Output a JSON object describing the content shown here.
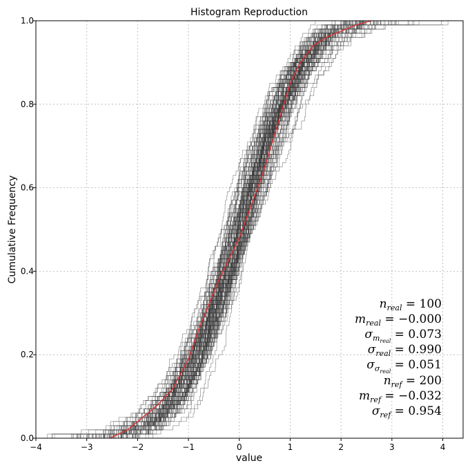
{
  "chart_data": {
    "type": "line",
    "title": "Histogram Reproduction",
    "xlabel": "value",
    "ylabel": "Cumulative Frequency",
    "xlim": [
      -4,
      4.4
    ],
    "ylim": [
      0,
      1
    ],
    "xticks": [
      -4,
      -3,
      -2,
      -1,
      0,
      1,
      2,
      3,
      4
    ],
    "xtick_labels": [
      "−4",
      "−3",
      "−2",
      "−1",
      "0",
      "1",
      "2",
      "3",
      "4"
    ],
    "yticks": [
      0.0,
      0.2,
      0.4,
      0.6,
      0.8,
      1.0
    ],
    "ytick_labels": [
      "0.0",
      "0.2",
      "0.4",
      "0.6",
      "0.8",
      "1.0"
    ],
    "grid": true,
    "series": [
      {
        "description": "simulated realization CDFs",
        "color": "#333333",
        "count": 100,
        "points": 100,
        "mean": -0.0,
        "std": 0.99,
        "std_of_mean": 0.073,
        "std_of_std": 0.051
      },
      {
        "description": "reference CDF",
        "color": "#e03030",
        "x": [
          -2.55,
          -2.2,
          -1.9,
          -1.6,
          -1.3,
          -1.0,
          -0.8,
          -0.6,
          -0.4,
          -0.2,
          0.0,
          0.15,
          0.3,
          0.45,
          0.6,
          0.8,
          1.0,
          1.2,
          1.45,
          1.7,
          2.0,
          2.3,
          2.6
        ],
        "y": [
          0.0,
          0.02,
          0.05,
          0.08,
          0.12,
          0.19,
          0.26,
          0.32,
          0.38,
          0.43,
          0.48,
          0.53,
          0.58,
          0.63,
          0.69,
          0.77,
          0.85,
          0.9,
          0.94,
          0.96,
          0.975,
          0.99,
          1.0
        ]
      }
    ],
    "annotations": [
      "n_{real} = 100",
      "m_{real} = −0.000",
      "σ_{m_{real}} = 0.073",
      "σ_{real} = 0.990",
      "σ_{σ_{real}} = 0.051",
      "n_{ref} = 200",
      "m_{ref} = −0.032",
      "σ_{ref} = 0.954"
    ]
  },
  "stats": {
    "n_real": {
      "sym": "n",
      "sub": "real",
      "val": "100"
    },
    "m_real": {
      "sym": "m",
      "sub": "real",
      "val": "−0.000"
    },
    "s_m_real": {
      "sym": "σ",
      "sub": "m",
      "subsub": "real",
      "val": "0.073"
    },
    "s_real": {
      "sym": "σ",
      "sub": "real",
      "val": "0.990"
    },
    "s_s_real": {
      "sym": "σ",
      "sub": "σ",
      "subsub": "real",
      "val": "0.051"
    },
    "n_ref": {
      "sym": "n",
      "sub": "ref",
      "val": "200"
    },
    "m_ref": {
      "sym": "m",
      "sub": "ref",
      "val": "−0.032"
    },
    "s_ref": {
      "sym": "σ",
      "sub": "ref",
      "val": "0.954"
    }
  }
}
